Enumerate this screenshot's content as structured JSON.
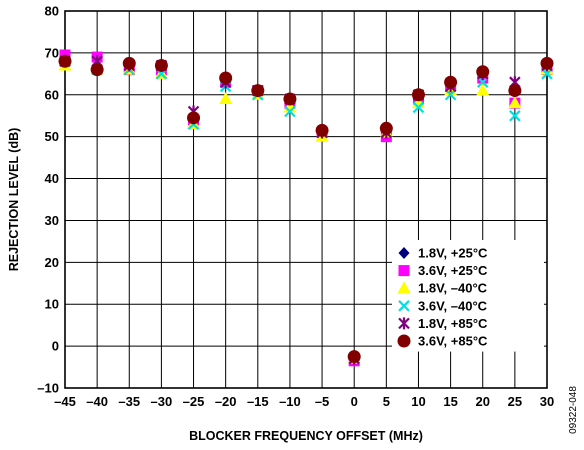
{
  "chart_data": {
    "type": "scatter",
    "xlabel": "BLOCKER FREQUENCY OFFSET (MHz)",
    "ylabel": "REJECTION LEVEL (dB)",
    "xlim": [
      -45,
      30
    ],
    "ylim": [
      -10,
      80
    ],
    "xticks": [
      -45,
      -40,
      -35,
      -30,
      -25,
      -20,
      -15,
      -10,
      -5,
      0,
      5,
      10,
      15,
      20,
      25,
      30
    ],
    "yticks": [
      -10,
      0,
      10,
      20,
      30,
      40,
      50,
      60,
      70,
      80
    ],
    "xtick_labels": [
      "–45",
      "–40",
      "–35",
      "–30",
      "–25",
      "–20",
      "–15",
      "–10",
      "–5",
      "0",
      "5",
      "10",
      "15",
      "20",
      "25",
      "30"
    ],
    "ytick_labels": [
      "–10",
      "0",
      "10",
      "20",
      "30",
      "40",
      "50",
      "60",
      "70",
      "80"
    ],
    "grid": true,
    "legend_position": "bottom-right",
    "figure_id": "09322-048",
    "x": [
      -45,
      -40,
      -35,
      -30,
      -25,
      -20,
      -15,
      -10,
      -5,
      0,
      5,
      10,
      15,
      20,
      25,
      30
    ],
    "series": [
      {
        "name": "1.8V, +25°C",
        "marker": "diamond",
        "color": "#000080",
        "values": [
          68,
          67,
          67,
          66,
          55,
          63,
          61,
          59,
          51,
          -3,
          51,
          60,
          62,
          64,
          61,
          67
        ]
      },
      {
        "name": "3.6V, +25°C",
        "marker": "square",
        "color": "#ff00ff",
        "values": [
          69.5,
          69,
          66,
          66,
          54,
          63,
          61,
          58,
          51,
          -3.5,
          50,
          59,
          62,
          64,
          58,
          66
        ]
      },
      {
        "name": "1.8V, –40°C",
        "marker": "triangle",
        "color": "#ffff00",
        "values": [
          67,
          66,
          66,
          65,
          53,
          59,
          60,
          57,
          50,
          -3,
          51,
          58,
          61,
          61,
          58,
          66
        ]
      },
      {
        "name": "3.6V, –40°C",
        "marker": "x",
        "color": "#00e0e0",
        "values": [
          68,
          66,
          66,
          65,
          53,
          62,
          60,
          56,
          51,
          -3,
          51,
          57,
          60,
          63,
          55,
          65
        ]
      },
      {
        "name": "1.8V, +85°C",
        "marker": "star",
        "color": "#800080",
        "values": [
          68,
          68,
          67,
          67,
          56,
          63,
          61,
          59,
          51,
          -3,
          51,
          60,
          62,
          65,
          63,
          67
        ]
      },
      {
        "name": "3.6V, +85°C",
        "marker": "circle",
        "color": "#800000",
        "values": [
          68,
          66,
          67.5,
          67,
          54.5,
          64,
          61,
          59,
          51.5,
          -2.5,
          52,
          60,
          63,
          65.5,
          61,
          67.5
        ]
      }
    ]
  }
}
